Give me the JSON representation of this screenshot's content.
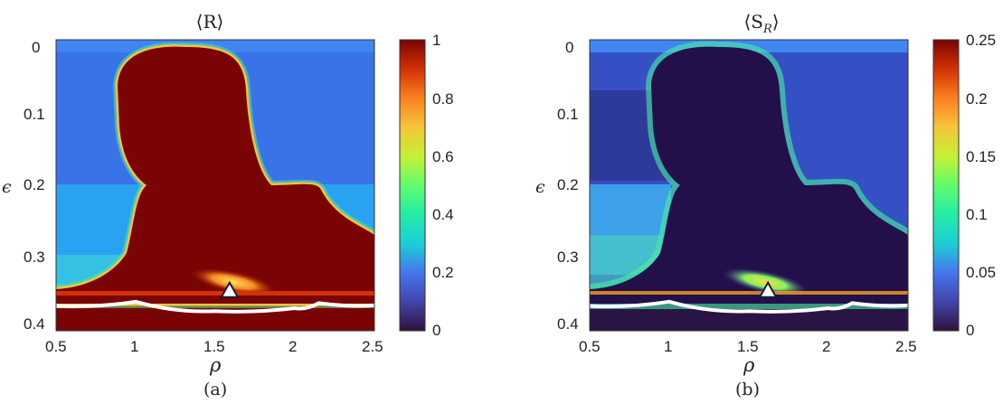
{
  "chart_data": [
    {
      "type": "heatmap",
      "title": "⟨R⟩",
      "xlabel": "ρ",
      "ylabel": "ϵ",
      "caption": "(a)",
      "xlim": [
        0.5,
        2.5
      ],
      "ylim": [
        0.4,
        0
      ],
      "xticks": [
        "0.5",
        "1",
        "1.5",
        "2",
        "2.5"
      ],
      "yticks": [
        "0",
        "0.1",
        "0.2",
        "0.3",
        "0.4"
      ],
      "colorbar": {
        "range": [
          0,
          1
        ],
        "ticks": [
          "0",
          "0.2",
          "0.4",
          "0.6",
          "0.8",
          "1"
        ]
      },
      "colormap": "turbo",
      "marker": {
        "shape": "triangle",
        "rho": 1.59,
        "epsilon": 0.345
      },
      "boundary_curve": {
        "color": "#ffffff",
        "points": [
          [
            0.5,
            0.366
          ],
          [
            1.0,
            0.36
          ],
          [
            1.5,
            0.373
          ],
          [
            2.0,
            0.369
          ],
          [
            2.15,
            0.362
          ],
          [
            2.5,
            0.365
          ]
        ]
      }
    },
    {
      "type": "heatmap",
      "title": "⟨S_R⟩",
      "title_main": "⟨S",
      "title_sub": "R",
      "title_close": "⟩",
      "xlabel": "ρ",
      "ylabel": "ϵ",
      "caption": "(b)",
      "xlim": [
        0.5,
        2.5
      ],
      "ylim": [
        0.4,
        0
      ],
      "xticks": [
        "0.5",
        "1",
        "1.5",
        "2",
        "2.5"
      ],
      "yticks": [
        "0",
        "0.1",
        "0.2",
        "0.3",
        "0.4"
      ],
      "colorbar": {
        "range": [
          0,
          0.25
        ],
        "ticks": [
          "0",
          "0.05",
          "0.1",
          "0.15",
          "0.2",
          "0.25"
        ]
      },
      "colormap": "turbo",
      "marker": {
        "shape": "triangle",
        "rho": 1.62,
        "epsilon": 0.345
      },
      "boundary_curve": {
        "color": "#ffffff",
        "points": [
          [
            0.5,
            0.366
          ],
          [
            1.0,
            0.36
          ],
          [
            1.5,
            0.373
          ],
          [
            2.0,
            0.369
          ],
          [
            2.15,
            0.362
          ],
          [
            2.5,
            0.365
          ]
        ]
      }
    }
  ]
}
